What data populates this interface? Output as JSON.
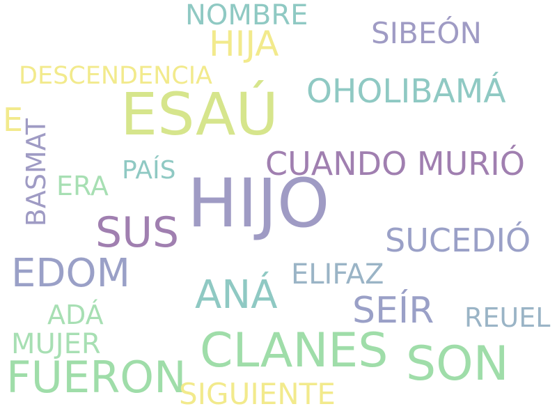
{
  "words": {
    "nombre": "NOMBRE",
    "hija": "HIJA",
    "sibeon": "SIBEÓN",
    "descendencia": "DESCENDENCIA",
    "esau": "ESAÚ",
    "oholibama": "OHOLIBAMÁ",
    "e": "E",
    "basmat": "BASMAT",
    "cuando_murio": "CUANDO MURIÓ",
    "pais": "PAÍS",
    "era": "ERA",
    "hijo": "HIJO",
    "sus": "SUS",
    "sucedio": "SUCEDIÓ",
    "edom": "EDOM",
    "ana": "ANÁ",
    "elifaz": "ELIFAZ",
    "seir": "SEÍR",
    "ada": "ADÁ",
    "reuel": "REUEL",
    "mujer": "MUJER",
    "clanes": "CLANES",
    "son": "SON",
    "fueron": "FUERON",
    "siguiente": "SIGUIENTE"
  },
  "colors": {
    "yellow": "#f2ea8c",
    "lime": "#d6e58c",
    "teal": "#8fc9c3",
    "mint": "#a7dfb3",
    "green": "#9fdda9",
    "purple": "#a07fb0",
    "lavender": "#9f9bc4",
    "slate": "#9aa0c7",
    "blue_slate": "#9ab4c6",
    "background": "#ffffff"
  }
}
